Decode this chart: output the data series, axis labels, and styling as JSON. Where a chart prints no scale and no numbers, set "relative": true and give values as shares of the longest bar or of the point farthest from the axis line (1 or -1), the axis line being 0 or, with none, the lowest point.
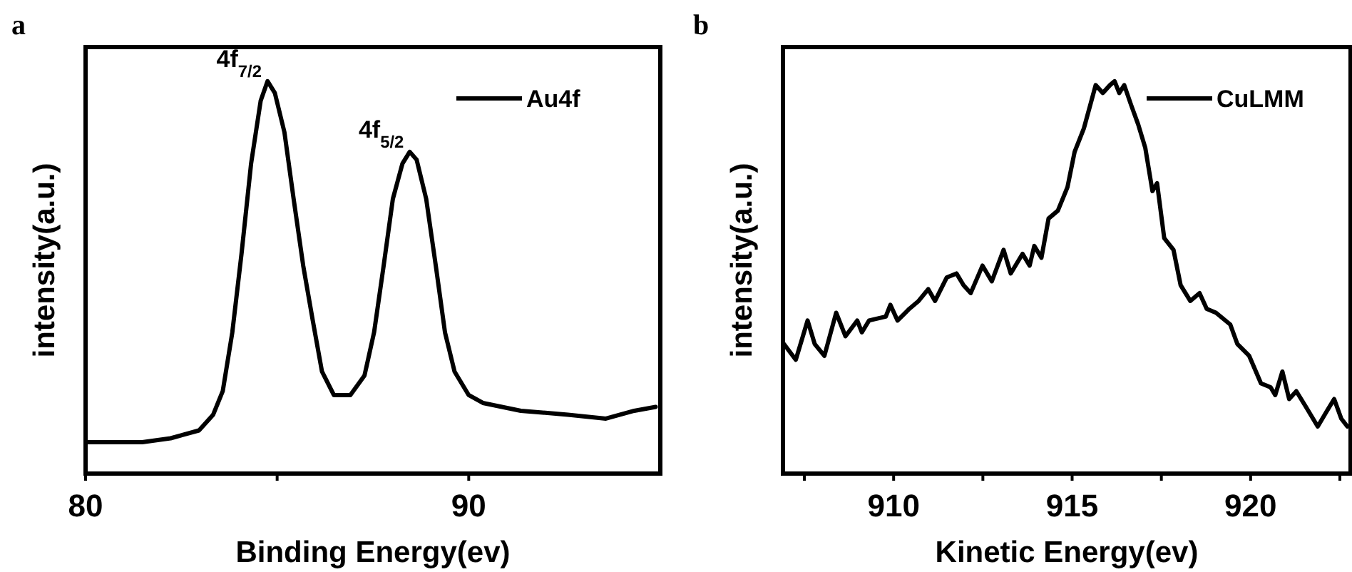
{
  "chart_data": [
    {
      "type": "line",
      "title": "a",
      "xlabel": "Binding Energy(ev)",
      "ylabel": "intensity(a.u.)",
      "relative": true,
      "legend": "top right",
      "xlim": [
        80,
        95
      ],
      "xticks": [
        80,
        {
          "value": 85,
          "label": null
        },
        90
      ],
      "annotations": [
        {
          "text": "4f$_{7/2}$",
          "x": 84.75,
          "y": 1.0
        },
        {
          "text": "4f$_{5/2}$",
          "x": 88.46,
          "y": 0.82
        }
      ],
      "series": [
        {
          "name": "Au4f",
          "color": "#000000",
          "x": [
            80.06,
            81.48,
            82.22,
            82.96,
            83.33,
            83.58,
            83.83,
            84.07,
            84.32,
            84.57,
            84.75,
            84.94,
            85.19,
            85.43,
            85.68,
            85.93,
            86.17,
            86.48,
            86.91,
            87.28,
            87.53,
            87.78,
            88.02,
            88.27,
            88.46,
            88.64,
            88.89,
            89.14,
            89.38,
            89.63,
            90.0,
            90.37,
            91.36,
            92.59,
            93.58,
            94.32,
            94.88
          ],
          "values": [
            0.08,
            0.08,
            0.09,
            0.11,
            0.15,
            0.21,
            0.36,
            0.56,
            0.79,
            0.95,
            1.0,
            0.97,
            0.87,
            0.7,
            0.53,
            0.39,
            0.26,
            0.2,
            0.2,
            0.25,
            0.36,
            0.53,
            0.7,
            0.79,
            0.82,
            0.8,
            0.7,
            0.53,
            0.36,
            0.26,
            0.2,
            0.18,
            0.16,
            0.15,
            0.14,
            0.16,
            0.17
          ]
        }
      ]
    },
    {
      "type": "line",
      "title": "b",
      "xlabel": "Kinetic Energy(ev)",
      "ylabel": "intensity(a.u.)",
      "relative": true,
      "legend": "top right",
      "xlim": [
        906.9,
        922.8
      ],
      "xticks": [
        {
          "value": 907.5,
          "label": null
        },
        910,
        {
          "value": 912.5,
          "label": null
        },
        915,
        {
          "value": 917.5,
          "label": null
        },
        920,
        {
          "value": 922.5,
          "label": null
        }
      ],
      "series": [
        {
          "name": "CuLMM",
          "color": "#000000",
          "x": [
            906.93,
            907.26,
            907.59,
            907.79,
            908.06,
            908.39,
            908.65,
            908.98,
            909.11,
            909.31,
            909.78,
            909.91,
            910.11,
            910.44,
            910.7,
            910.97,
            911.16,
            911.49,
            911.76,
            911.96,
            912.16,
            912.49,
            912.75,
            913.08,
            913.28,
            913.61,
            913.81,
            913.94,
            914.14,
            914.34,
            914.6,
            914.87,
            915.07,
            915.33,
            915.66,
            915.86,
            916.06,
            916.19,
            916.32,
            916.46,
            916.65,
            916.85,
            917.05,
            917.25,
            917.38,
            917.58,
            917.84,
            918.04,
            918.31,
            918.57,
            918.77,
            919.03,
            919.43,
            919.63,
            919.96,
            920.29,
            920.56,
            920.69,
            920.89,
            921.08,
            921.28,
            921.55,
            921.88,
            922.14,
            922.34,
            922.54,
            922.71
          ],
          "values": [
            0.33,
            0.29,
            0.39,
            0.33,
            0.3,
            0.41,
            0.35,
            0.39,
            0.36,
            0.39,
            0.4,
            0.43,
            0.39,
            0.42,
            0.44,
            0.47,
            0.44,
            0.5,
            0.51,
            0.48,
            0.46,
            0.53,
            0.49,
            0.57,
            0.51,
            0.56,
            0.53,
            0.58,
            0.55,
            0.65,
            0.67,
            0.73,
            0.82,
            0.88,
            0.99,
            0.97,
            0.99,
            1.0,
            0.97,
            0.99,
            0.94,
            0.89,
            0.83,
            0.72,
            0.74,
            0.6,
            0.57,
            0.48,
            0.44,
            0.46,
            0.42,
            0.41,
            0.38,
            0.33,
            0.3,
            0.23,
            0.22,
            0.2,
            0.26,
            0.19,
            0.21,
            0.17,
            0.12,
            0.16,
            0.19,
            0.14,
            0.12
          ]
        }
      ]
    }
  ]
}
